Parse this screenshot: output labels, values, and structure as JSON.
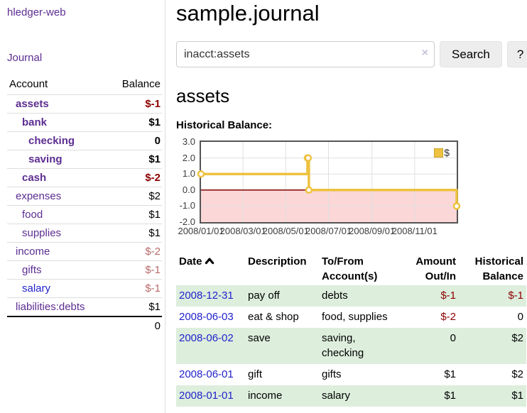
{
  "app": {
    "brand": "hledger-web"
  },
  "colors": {
    "link_purple": "#5c2d91",
    "link_blue": "#2222cc",
    "negative_strong": "#8b0000",
    "negative_soft": "#b96a6a",
    "text": "#000000",
    "row_stripe_green": "#ddeedd"
  },
  "sidebar": {
    "journal_label": "Journal",
    "table": {
      "account_header": "Account",
      "balance_header": "Balance",
      "rows": [
        {
          "account": "assets",
          "balance": "$-1",
          "indent": 1,
          "bold": true,
          "account_color": "#5c2d91",
          "balance_color": "#8b0000"
        },
        {
          "account": "bank",
          "balance": "$1",
          "indent": 2,
          "bold": true,
          "account_color": "#5c2d91",
          "balance_color": "#000000"
        },
        {
          "account": "checking",
          "balance": "0",
          "indent": 3,
          "bold": true,
          "account_color": "#5c2d91",
          "balance_color": "#000000"
        },
        {
          "account": "saving",
          "balance": "$1",
          "indent": 3,
          "bold": true,
          "account_color": "#5c2d91",
          "balance_color": "#000000"
        },
        {
          "account": "cash",
          "balance": "$-2",
          "indent": 2,
          "bold": true,
          "account_color": "#5c2d91",
          "balance_color": "#8b0000"
        },
        {
          "account": "expenses",
          "balance": "$2",
          "indent": 1,
          "bold": false,
          "account_color": "#5c2d91",
          "balance_color": "#000000"
        },
        {
          "account": "food",
          "balance": "$1",
          "indent": 2,
          "bold": false,
          "account_color": "#5c2d91",
          "balance_color": "#000000"
        },
        {
          "account": "supplies",
          "balance": "$1",
          "indent": 2,
          "bold": false,
          "account_color": "#5c2d91",
          "balance_color": "#000000"
        },
        {
          "account": "income",
          "balance": "$-2",
          "indent": 1,
          "bold": false,
          "account_color": "#5c2d91",
          "balance_color": "#b96a6a"
        },
        {
          "account": "gifts",
          "balance": "$-1",
          "indent": 2,
          "bold": false,
          "account_color": "#5c2d91",
          "balance_color": "#b96a6a"
        },
        {
          "account": "salary",
          "balance": "$-1",
          "indent": 2,
          "bold": false,
          "account_color": "#2222cc",
          "balance_color": "#b96a6a"
        },
        {
          "account": "liabilities:debts",
          "balance": "$1",
          "indent": 1,
          "bold": false,
          "account_color": "#5c2d91",
          "balance_color": "#000000"
        }
      ],
      "total": "0"
    }
  },
  "header": {
    "title": "sample.journal"
  },
  "search": {
    "value": "inacct:assets",
    "placeholder": "",
    "clear_icon": "×",
    "search_label": "Search",
    "help_label": "?"
  },
  "account_page": {
    "heading": "assets",
    "chart_label": "Historical Balance:"
  },
  "chart_data": {
    "type": "line",
    "title": "Historical Balance:",
    "legend": "$",
    "legend_position": "top-right",
    "grid": true,
    "step": true,
    "xrange": [
      "2008/01/01",
      "2008/12/31"
    ],
    "xticks": [
      "2008/01/01",
      "2008/03/01",
      "2008/05/01",
      "2008/07/01",
      "2008/09/01",
      "2008/11/01"
    ],
    "ylim": [
      -2.0,
      3.0
    ],
    "yticks": [
      3.0,
      2.0,
      1.0,
      0.0,
      -1.0,
      -2.0
    ],
    "series": [
      {
        "name": "$",
        "color": "#edc240",
        "points": [
          {
            "date": "2008/01/01",
            "value": 1.0
          },
          {
            "date": "2008/06/01",
            "value": 2.0
          },
          {
            "date": "2008/06/02",
            "value": 2.0
          },
          {
            "date": "2008/06/03",
            "value": 0.0
          },
          {
            "date": "2008/12/31",
            "value": -1.0
          }
        ]
      }
    ],
    "negative_region_color": "#fbd7d7",
    "zero_line_color": "#800000",
    "grid_line_color": "#e0e0e0",
    "border_color": "#545454"
  },
  "transactions": {
    "columns": {
      "date": "Date",
      "description": "Description",
      "tofrom": [
        "To/From",
        "Account(s)"
      ],
      "amount": [
        "Amount",
        "Out/In"
      ],
      "balance": [
        "Historical",
        "Balance"
      ]
    },
    "rows": [
      {
        "date": "2008-12-31",
        "description": "pay off",
        "accounts": "debts",
        "amount": "$-1",
        "balance": "$-1",
        "amount_color": "#8b0000",
        "balance_color": "#8b0000",
        "shaded": true
      },
      {
        "date": "2008-06-03",
        "description": "eat & shop",
        "accounts": "food, supplies",
        "amount": "$-2",
        "balance": "0",
        "amount_color": "#8b0000",
        "balance_color": "#000000",
        "shaded": false
      },
      {
        "date": "2008-06-02",
        "description": "save",
        "accounts": "saving, checking",
        "amount": "0",
        "balance": "$2",
        "amount_color": "#000000",
        "balance_color": "#000000",
        "shaded": true
      },
      {
        "date": "2008-06-01",
        "description": "gift",
        "accounts": "gifts",
        "amount": "$1",
        "balance": "$2",
        "amount_color": "#000000",
        "balance_color": "#000000",
        "shaded": false
      },
      {
        "date": "2008-01-01",
        "description": "income",
        "accounts": "salary",
        "amount": "$1",
        "balance": "$1",
        "amount_color": "#000000",
        "balance_color": "#000000",
        "shaded": true
      }
    ]
  }
}
